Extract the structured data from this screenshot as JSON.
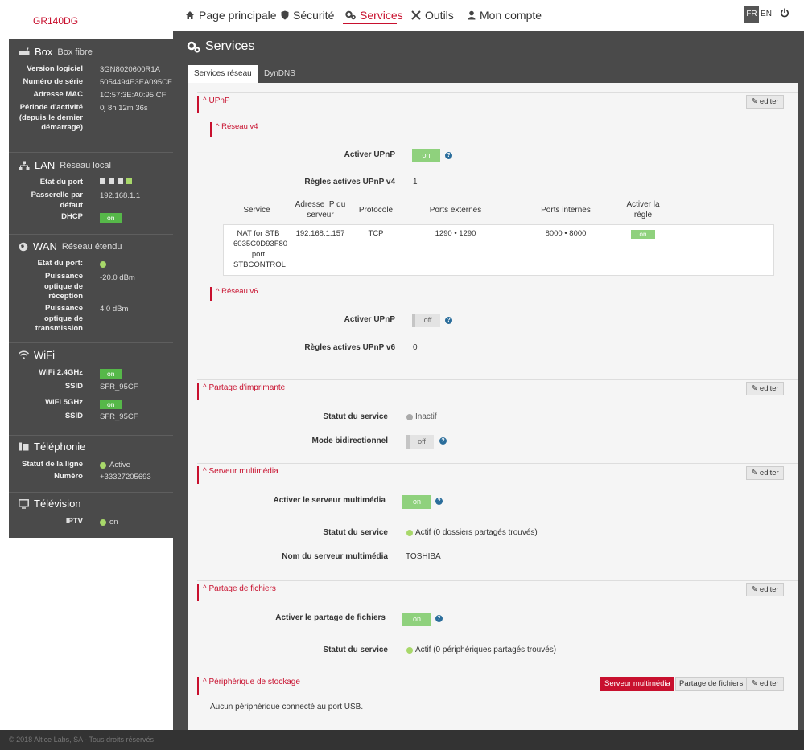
{
  "brand": "GR140DG",
  "nav": {
    "home": "Page principale",
    "security": "Sécurité",
    "services": "Services",
    "tools": "Outils",
    "account": "Mon compte"
  },
  "langs": {
    "fr": "FR",
    "en": "EN"
  },
  "sidebar": {
    "box": {
      "title": "Box",
      "subtitle": "Box fibre",
      "version_label": "Version logiciel",
      "version": "3GN8020600R1A",
      "serial_label": "Numéro de série",
      "serial": "5054494E3EA095CF",
      "mac_label": "Adresse MAC",
      "mac": "1C:57:3E:A0:95:CF",
      "uptime_label": "Période d'activité (depuis le dernier démarrage)",
      "uptime": "0j 8h 12m 36s"
    },
    "lan": {
      "title": "LAN",
      "subtitle": "Réseau local",
      "port_label": "Etat du port",
      "gateway_label": "Passerelle par défaut",
      "gateway": "192.168.1.1",
      "dhcp_label": "DHCP",
      "dhcp": "on"
    },
    "wan": {
      "title": "WAN",
      "subtitle": "Réseau étendu",
      "port_label": "Etat du port:",
      "rx_label": "Puissance optique de réception",
      "rx": "-20.0 dBm",
      "tx_label": "Puissance optique de transmission",
      "tx": "4.0 dBm"
    },
    "wifi": {
      "title": "WiFi",
      "w24_label": "WiFi 2.4GHz",
      "w24": "on",
      "ssid_label": "SSID",
      "ssid1": "SFR_95CF",
      "w5_label": "WiFi 5GHz",
      "w5": "on",
      "ssid2": "SFR_95CF"
    },
    "tel": {
      "title": "Téléphonie",
      "line_label": "Statut de la ligne",
      "line": "Active",
      "number_label": "Numéro",
      "number": "+33327205693"
    },
    "tv": {
      "title": "Télévision",
      "iptv_label": "IPTV",
      "iptv": "on"
    }
  },
  "page": {
    "title": "Services",
    "tabs": [
      "Services réseau",
      "DynDNS"
    ],
    "edit": "editer"
  },
  "upnp": {
    "title": "UPnP",
    "v4": {
      "title": "Réseau v4",
      "enable_label": "Activer UPnP",
      "enable": "on",
      "rules_label": "Règles actives UPnP v4",
      "rules": "1"
    },
    "table": {
      "headers": [
        "Service",
        "Adresse IP du serveur",
        "Protocole",
        "Ports externes",
        "Ports internes",
        "Activer la règle"
      ],
      "rows": [
        {
          "service": "NAT for STB 6035C0D93F80 port STBCONTROL",
          "ip": "192.168.1.157",
          "proto": "TCP",
          "ext": "1290 • 1290",
          "int": "8000 • 8000",
          "enabled": "on"
        }
      ]
    },
    "v6": {
      "title": "Réseau v6",
      "enable_label": "Activer UPnP",
      "enable": "off",
      "rules_label": "Règles actives UPnP v6",
      "rules": "0"
    }
  },
  "printer": {
    "title": "Partage d'imprimante",
    "status_label": "Statut du service",
    "status": "Inactif",
    "bidir_label": "Mode bidirectionnel",
    "bidir": "off"
  },
  "media": {
    "title": "Serveur multimédia",
    "enable_label": "Activer le serveur multimédia",
    "enable": "on",
    "status_label": "Statut du service",
    "status": "Actif (0 dossiers partagés trouvés)",
    "name_label": "Nom du serveur multimédia",
    "name": "TOSHIBA"
  },
  "files": {
    "title": "Partage de fichiers",
    "enable_label": "Activer le partage de fichiers",
    "enable": "on",
    "status_label": "Statut du service",
    "status": "Actif (0 périphériques partagés trouvés)"
  },
  "storage": {
    "title": "Périphérique de stockage",
    "btn_media": "Serveur multimédia",
    "btn_files": "Partage de fichiers",
    "empty": "Aucun périphérique connecté au port USB."
  },
  "footer": "© 2018 Altice Labs, SA - Tous droits réservés",
  "colors": {
    "accent": "#c8102e",
    "toggle_on": "#8fd17d",
    "sidebar": "#4a4a4a"
  }
}
